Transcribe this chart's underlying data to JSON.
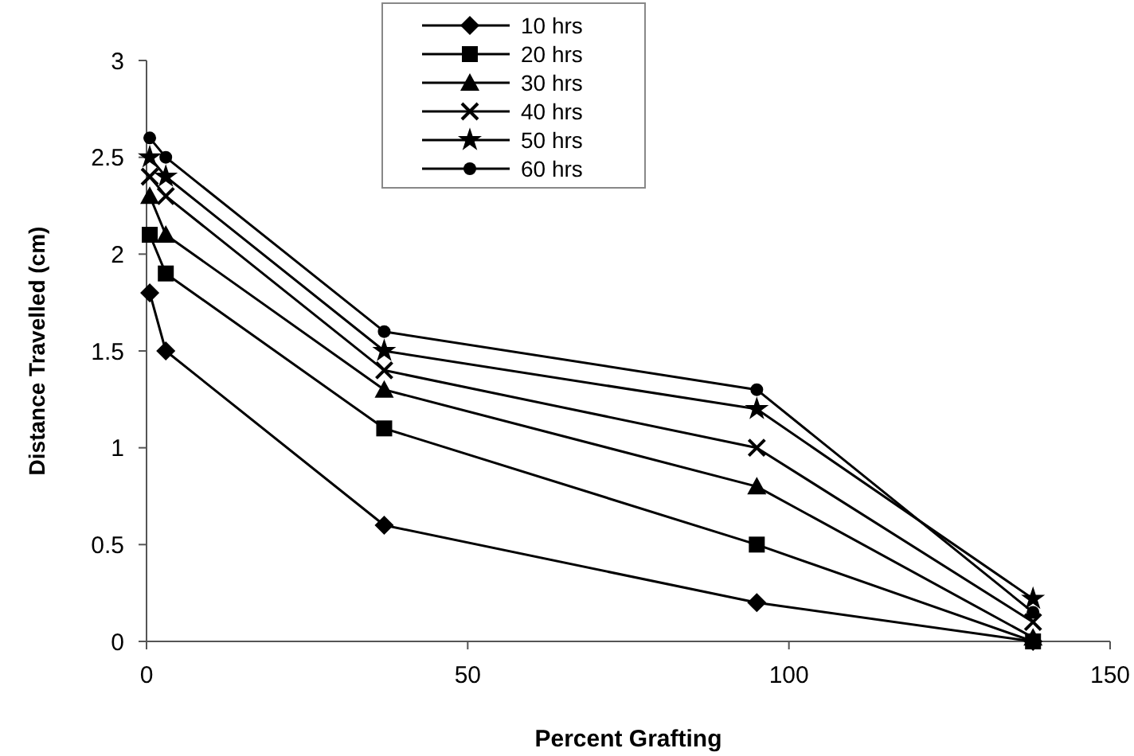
{
  "chart_data": {
    "type": "line",
    "xlabel": "Percent Grafting",
    "ylabel": "Distance Travelled (cm)",
    "xlim": [
      0,
      150
    ],
    "xticks": [
      0,
      50,
      100,
      150
    ],
    "ylim": [
      0,
      3
    ],
    "yticks": [
      0,
      0.5,
      1,
      1.5,
      2,
      2.5,
      3
    ],
    "grid": false,
    "legend": "top",
    "x": [
      0.5,
      3,
      37,
      95,
      138
    ],
    "series": [
      {
        "name": "10 hrs",
        "color": "#000000",
        "marker": "diamond",
        "values": [
          1.8,
          1.5,
          0.6,
          0.2,
          0
        ]
      },
      {
        "name": "20 hrs",
        "color": "#000000",
        "marker": "square",
        "values": [
          2.1,
          1.9,
          1.1,
          0.5,
          0
        ]
      },
      {
        "name": "30 hrs",
        "color": "#000000",
        "marker": "triangle",
        "values": [
          2.3,
          2.1,
          1.3,
          0.8,
          0.02
        ]
      },
      {
        "name": "40 hrs",
        "color": "#000000",
        "marker": "cross",
        "values": [
          2.4,
          2.3,
          1.4,
          1.0,
          0.1
        ]
      },
      {
        "name": "50 hrs",
        "color": "#000000",
        "marker": "star",
        "values": [
          2.5,
          2.4,
          1.5,
          1.2,
          0.22
        ]
      },
      {
        "name": "60 hrs",
        "color": "#000000",
        "marker": "circle",
        "values": [
          2.6,
          2.5,
          1.6,
          1.3,
          0.15
        ]
      }
    ]
  }
}
